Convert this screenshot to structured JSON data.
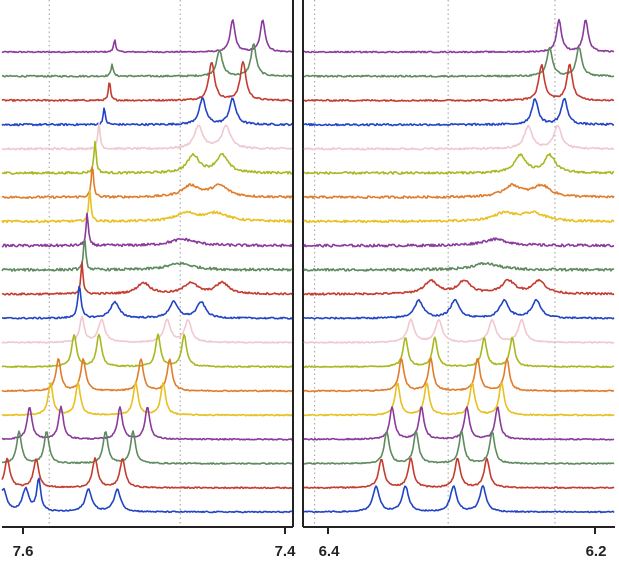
{
  "chart_data": {
    "type": "line",
    "description_kind": "stacked NMR spectra (waterfall)",
    "panels": [
      {
        "name": "left-panel",
        "xlim": [
          7.62,
          7.39
        ],
        "reversed_axis": true,
        "ticks": [
          {
            "value": 7.6,
            "label": "7.6"
          },
          {
            "value": 7.4,
            "label": "7.4"
          }
        ],
        "gridlines": [
          7.58,
          7.48
        ]
      },
      {
        "name": "right-panel",
        "xlim": [
          6.42,
          6.18
        ],
        "reversed_axis": true,
        "ticks": [
          {
            "value": 6.4,
            "label": "6.4"
          },
          {
            "value": 6.2,
            "label": "6.2"
          }
        ],
        "gridlines": [
          6.41,
          6.31,
          6.23
        ]
      }
    ],
    "series": [
      {
        "name": "trace-1",
        "color": "#8a3a9c",
        "left_peaks": [
          [
            7.53,
            0.4,
            0.0009
          ],
          [
            7.44,
            1.0,
            0.0022
          ],
          [
            7.417,
            1.0,
            0.0022
          ]
        ],
        "right_peaks": [
          [
            6.227,
            1.0,
            0.0022
          ],
          [
            6.207,
            1.0,
            0.0022
          ]
        ],
        "noise": 0.04
      },
      {
        "name": "trace-2",
        "color": "#5e8a5e",
        "left_peaks": [
          [
            7.532,
            0.4,
            0.0009
          ],
          [
            7.45,
            0.8,
            0.0026
          ],
          [
            7.424,
            1.0,
            0.0024
          ]
        ],
        "right_peaks": [
          [
            6.234,
            0.9,
            0.0024
          ],
          [
            6.212,
            0.9,
            0.0024
          ]
        ],
        "noise": 0.05
      },
      {
        "name": "trace-3",
        "color": "#c43c2f",
        "left_peaks": [
          [
            7.534,
            0.6,
            0.0009
          ],
          [
            7.456,
            1.2,
            0.0026
          ],
          [
            7.432,
            1.2,
            0.0026
          ]
        ],
        "right_peaks": [
          [
            6.24,
            1.1,
            0.0025
          ],
          [
            6.219,
            1.1,
            0.0025
          ]
        ],
        "noise": 0.05
      },
      {
        "name": "trace-4",
        "color": "#2244c4",
        "left_peaks": [
          [
            7.538,
            0.5,
            0.001
          ],
          [
            7.463,
            0.8,
            0.003
          ],
          [
            7.44,
            0.8,
            0.003
          ]
        ],
        "right_peaks": [
          [
            6.245,
            0.8,
            0.0028
          ],
          [
            6.223,
            0.8,
            0.0028
          ]
        ],
        "noise": 0.06
      },
      {
        "name": "trace-5",
        "color": "#f0c8d0",
        "left_peaks": [
          [
            7.542,
            0.8,
            0.001
          ],
          [
            7.466,
            0.7,
            0.004
          ],
          [
            7.445,
            0.7,
            0.004
          ]
        ],
        "right_peaks": [
          [
            6.25,
            0.7,
            0.0035
          ],
          [
            6.228,
            0.7,
            0.0035
          ]
        ],
        "noise": 0.06
      },
      {
        "name": "trace-6",
        "color": "#a8b820",
        "left_peaks": [
          [
            7.545,
            1.0,
            0.001
          ],
          [
            7.47,
            0.55,
            0.0055
          ],
          [
            7.448,
            0.55,
            0.0055
          ]
        ],
        "right_peaks": [
          [
            6.256,
            0.55,
            0.005
          ],
          [
            6.234,
            0.55,
            0.005
          ]
        ],
        "noise": 0.07
      },
      {
        "name": "trace-7",
        "color": "#e07d2c",
        "left_peaks": [
          [
            7.547,
            1.0,
            0.001
          ],
          [
            7.472,
            0.35,
            0.008
          ],
          [
            7.45,
            0.35,
            0.008
          ]
        ],
        "right_peaks": [
          [
            6.262,
            0.35,
            0.008
          ],
          [
            6.24,
            0.35,
            0.008
          ]
        ],
        "noise": 0.07
      },
      {
        "name": "trace-8",
        "color": "#e8c020",
        "left_peaks": [
          [
            7.549,
            1.0,
            0.001
          ],
          [
            7.475,
            0.25,
            0.01
          ],
          [
            7.452,
            0.25,
            0.01
          ]
        ],
        "right_peaks": [
          [
            6.268,
            0.25,
            0.01
          ],
          [
            6.246,
            0.25,
            0.01
          ]
        ],
        "noise": 0.07
      },
      {
        "name": "trace-9",
        "color": "#8a3a9c",
        "left_peaks": [
          [
            7.551,
            1.0,
            0.001
          ],
          [
            7.478,
            0.2,
            0.012
          ]
        ],
        "right_peaks": [
          [
            6.275,
            0.2,
            0.012
          ]
        ],
        "noise": 0.08
      },
      {
        "name": "trace-10",
        "color": "#5e8a5e",
        "left_peaks": [
          [
            7.553,
            1.0,
            0.001
          ],
          [
            7.48,
            0.2,
            0.012
          ]
        ],
        "right_peaks": [
          [
            6.282,
            0.2,
            0.012
          ]
        ],
        "noise": 0.08
      },
      {
        "name": "trace-11",
        "color": "#c43c2f",
        "left_peaks": [
          [
            7.555,
            1.0,
            0.001
          ],
          [
            7.508,
            0.35,
            0.006
          ],
          [
            7.472,
            0.35,
            0.006
          ],
          [
            7.448,
            0.35,
            0.006
          ]
        ],
        "right_peaks": [
          [
            6.323,
            0.4,
            0.006
          ],
          [
            6.298,
            0.4,
            0.006
          ],
          [
            6.265,
            0.4,
            0.006
          ],
          [
            6.242,
            0.4,
            0.006
          ]
        ],
        "noise": 0.06
      },
      {
        "name": "trace-12",
        "color": "#2244c4",
        "left_peaks": [
          [
            7.557,
            1.0,
            0.0015
          ],
          [
            7.53,
            0.5,
            0.004
          ],
          [
            7.485,
            0.5,
            0.004
          ],
          [
            7.464,
            0.5,
            0.004
          ]
        ],
        "right_peaks": [
          [
            6.332,
            0.55,
            0.004
          ],
          [
            6.305,
            0.55,
            0.004
          ],
          [
            6.268,
            0.55,
            0.004
          ],
          [
            6.244,
            0.55,
            0.004
          ]
        ],
        "noise": 0.05
      },
      {
        "name": "trace-13",
        "color": "#f0c8d0",
        "left_peaks": [
          [
            7.555,
            0.8,
            0.002
          ],
          [
            7.54,
            0.7,
            0.003
          ],
          [
            7.49,
            0.7,
            0.003
          ],
          [
            7.474,
            0.7,
            0.003
          ]
        ],
        "right_peaks": [
          [
            6.338,
            0.7,
            0.003
          ],
          [
            6.317,
            0.7,
            0.003
          ],
          [
            6.277,
            0.7,
            0.003
          ],
          [
            6.255,
            0.7,
            0.003
          ]
        ],
        "noise": 0.04
      },
      {
        "name": "trace-14",
        "color": "#a8b820",
        "left_peaks": [
          [
            7.561,
            1.0,
            0.0022
          ],
          [
            7.542,
            1.0,
            0.0022
          ],
          [
            7.497,
            1.0,
            0.0022
          ],
          [
            7.477,
            1.0,
            0.0022
          ]
        ],
        "right_peaks": [
          [
            6.342,
            0.9,
            0.0022
          ],
          [
            6.32,
            0.9,
            0.0022
          ],
          [
            6.283,
            0.9,
            0.0022
          ],
          [
            6.262,
            0.9,
            0.0022
          ]
        ],
        "noise": 0.04
      },
      {
        "name": "trace-15",
        "color": "#e07d2c",
        "left_peaks": [
          [
            7.573,
            1.0,
            0.0022
          ],
          [
            7.554,
            1.0,
            0.0022
          ],
          [
            7.51,
            1.0,
            0.0022
          ],
          [
            7.488,
            1.0,
            0.0022
          ]
        ],
        "right_peaks": [
          [
            6.345,
            1.0,
            0.0022
          ],
          [
            6.323,
            1.0,
            0.0022
          ],
          [
            6.288,
            1.0,
            0.0022
          ],
          [
            6.266,
            1.0,
            0.0022
          ]
        ],
        "noise": 0.04
      },
      {
        "name": "trace-16",
        "color": "#e8c020",
        "left_peaks": [
          [
            7.579,
            1.0,
            0.0022
          ],
          [
            7.558,
            1.0,
            0.0022
          ],
          [
            7.514,
            1.0,
            0.0022
          ],
          [
            7.493,
            1.0,
            0.0022
          ]
        ],
        "right_peaks": [
          [
            6.348,
            1.0,
            0.0022
          ],
          [
            6.326,
            1.0,
            0.0022
          ],
          [
            6.292,
            1.0,
            0.0022
          ],
          [
            6.27,
            1.0,
            0.0022
          ]
        ],
        "noise": 0.04
      },
      {
        "name": "trace-17",
        "color": "#8a3a9c",
        "left_peaks": [
          [
            7.595,
            1.0,
            0.0022
          ],
          [
            7.571,
            1.0,
            0.0022
          ],
          [
            7.526,
            1.0,
            0.0022
          ],
          [
            7.505,
            1.0,
            0.0022
          ]
        ],
        "right_peaks": [
          [
            6.352,
            1.0,
            0.0022
          ],
          [
            6.33,
            1.0,
            0.0022
          ],
          [
            6.296,
            1.0,
            0.0022
          ],
          [
            6.273,
            1.0,
            0.0022
          ]
        ],
        "noise": 0.04
      },
      {
        "name": "trace-18",
        "color": "#5e8a5e",
        "left_peaks": [
          [
            7.603,
            1.0,
            0.0022
          ],
          [
            7.582,
            1.0,
            0.0022
          ],
          [
            7.537,
            1.0,
            0.0022
          ],
          [
            7.516,
            1.0,
            0.0022
          ]
        ],
        "right_peaks": [
          [
            6.356,
            1.0,
            0.0022
          ],
          [
            6.334,
            1.0,
            0.0022
          ],
          [
            6.3,
            1.0,
            0.0022
          ],
          [
            6.277,
            1.0,
            0.0022
          ]
        ],
        "noise": 0.04
      },
      {
        "name": "trace-19",
        "color": "#c43c2f",
        "left_peaks": [
          [
            7.612,
            0.9,
            0.0024
          ],
          [
            7.59,
            0.9,
            0.0024
          ],
          [
            7.545,
            0.9,
            0.0024
          ],
          [
            7.524,
            0.9,
            0.0024
          ]
        ],
        "right_peaks": [
          [
            6.36,
            0.9,
            0.0024
          ],
          [
            6.338,
            0.9,
            0.0024
          ],
          [
            6.303,
            0.9,
            0.0024
          ],
          [
            6.281,
            0.9,
            0.0024
          ]
        ],
        "noise": 0.04
      },
      {
        "name": "trace-20",
        "color": "#2244c4",
        "left_peaks": [
          [
            7.615,
            0.7,
            0.003
          ],
          [
            7.598,
            0.7,
            0.003
          ],
          [
            7.588,
            1.0,
            0.0018
          ],
          [
            7.55,
            0.7,
            0.003
          ],
          [
            7.528,
            0.7,
            0.003
          ]
        ],
        "right_peaks": [
          [
            6.364,
            0.8,
            0.0028
          ],
          [
            6.342,
            0.8,
            0.0028
          ],
          [
            6.306,
            0.8,
            0.0028
          ],
          [
            6.284,
            0.8,
            0.0028
          ]
        ],
        "noise": 0.04
      }
    ]
  }
}
